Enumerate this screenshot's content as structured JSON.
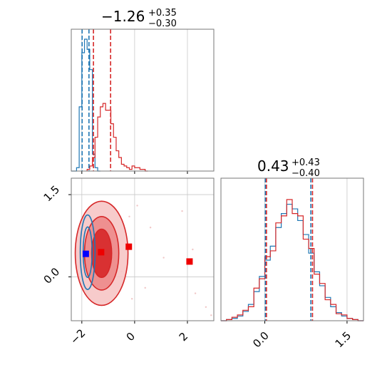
{
  "chart_data": [
    {
      "type": "histogram",
      "panel": "top-left",
      "title": {
        "value": "−1.26",
        "plus": "+0.35",
        "minus": "−0.30"
      },
      "xlim": [
        -2.4,
        3.0
      ],
      "grid": true,
      "series": [
        {
          "color": "#1f77b4",
          "bin_edges": [
            -2.4,
            -2.3,
            -2.2,
            -2.1,
            -2.0,
            -1.9,
            -1.8,
            -1.7,
            -1.6,
            -1.5,
            -1.4,
            -1.3
          ],
          "counts": [
            0,
            0,
            2,
            38,
            70,
            78,
            72,
            60,
            10,
            2,
            0
          ]
        },
        {
          "color": "#d62728",
          "bin_edges": [
            -1.8,
            -1.7,
            -1.6,
            -1.5,
            -1.4,
            -1.3,
            -1.2,
            -1.1,
            -1.0,
            -0.9,
            -0.8,
            -0.7,
            -0.6,
            -0.5,
            -0.4,
            -0.3,
            -0.2,
            -0.1,
            0.0,
            0.1,
            0.2,
            0.3,
            0.4,
            0.5
          ],
          "counts": [
            1,
            3,
            8,
            20,
            32,
            38,
            40,
            36,
            36,
            28,
            20,
            12,
            8,
            4,
            3,
            2,
            1,
            3,
            2,
            2,
            1,
            1,
            0
          ]
        }
      ],
      "quantile_lines": [
        {
          "x": -1.99,
          "color": "#1f77b4"
        },
        {
          "x": -1.73,
          "color": "#1f77b4"
        },
        {
          "x": -1.56,
          "color": "#d62728"
        },
        {
          "x": -0.91,
          "color": "#d62728"
        }
      ],
      "xticks": [
        -2,
        0,
        2
      ]
    },
    {
      "type": "histogram",
      "panel": "bottom-right",
      "title": {
        "value": "0.43",
        "plus": "+0.43",
        "minus": "−0.40"
      },
      "xlim": [
        -0.8,
        1.8
      ],
      "grid": true,
      "xticks": [
        {
          "value": 0.0,
          "label": "0.0"
        },
        {
          "value": 1.5,
          "label": "1.5"
        }
      ],
      "series": [
        {
          "color": "#1f77b4",
          "bin_edges": [
            -0.8,
            -0.7,
            -0.6,
            -0.5,
            -0.4,
            -0.3,
            -0.2,
            -0.1,
            0.0,
            0.1,
            0.2,
            0.3,
            0.4,
            0.5,
            0.6,
            0.7,
            0.8,
            0.9,
            1.0,
            1.1,
            1.2,
            1.3,
            1.4,
            1.5,
            1.6,
            1.7,
            1.8
          ],
          "counts": [
            0,
            1,
            2,
            4,
            8,
            14,
            25,
            38,
            52,
            64,
            80,
            92,
            100,
            96,
            86,
            74,
            58,
            42,
            30,
            20,
            12,
            7,
            4,
            2,
            1,
            0
          ]
        },
        {
          "color": "#d62728",
          "bin_edges": [
            -0.8,
            -0.7,
            -0.6,
            -0.5,
            -0.4,
            -0.3,
            -0.2,
            -0.1,
            0.0,
            0.1,
            0.2,
            0.3,
            0.4,
            0.5,
            0.6,
            0.7,
            0.8,
            0.9,
            1.0,
            1.1,
            1.2,
            1.3,
            1.4,
            1.5,
            1.6,
            1.7,
            1.8
          ],
          "counts": [
            0,
            1,
            3,
            5,
            9,
            12,
            28,
            36,
            55,
            60,
            84,
            90,
            104,
            92,
            90,
            70,
            62,
            40,
            32,
            18,
            14,
            6,
            5,
            2,
            1,
            0
          ]
        }
      ],
      "quantile_lines": [
        {
          "x": 0.01,
          "color": "#1f77b4"
        },
        {
          "x": 0.03,
          "color": "#d62728"
        },
        {
          "x": 0.84,
          "color": "#1f77b4"
        },
        {
          "x": 0.87,
          "color": "#d62728"
        }
      ]
    },
    {
      "type": "contour",
      "panel": "bottom-left",
      "xlim": [
        -2.4,
        3.0
      ],
      "ylim": [
        -0.8,
        1.8
      ],
      "grid": true,
      "xticks": [
        -2,
        0,
        2
      ],
      "yticks": [
        {
          "value": 0.0,
          "label": "0.0"
        },
        {
          "value": 1.5,
          "label": "1.5"
        }
      ],
      "contours": [
        {
          "color": "#d62728",
          "cx": -1.25,
          "cy": 0.43,
          "levels": [
            {
              "rx": 1.0,
              "ry": 0.95,
              "fill": "#f6c5c5"
            },
            {
              "rx": 0.65,
              "ry": 0.67,
              "fill": "#ec8a8a"
            },
            {
              "rx": 0.38,
              "ry": 0.44,
              "fill": "#d62728"
            }
          ]
        },
        {
          "color": "#1f77b4",
          "cx": -1.78,
          "cy": 0.45,
          "levels": [
            {
              "rx": 0.28,
              "ry": 0.68
            },
            {
              "rx": 0.17,
              "ry": 0.46
            }
          ]
        }
      ],
      "markers": [
        {
          "x": -1.85,
          "y": 0.42,
          "color": "#0000ff"
        },
        {
          "x": -1.27,
          "y": 0.45,
          "color": "#ee0000"
        },
        {
          "x": -0.22,
          "y": 0.55,
          "color": "#ee0000"
        },
        {
          "x": 2.08,
          "y": 0.28,
          "color": "#ee0000"
        }
      ],
      "scatter": [
        {
          "x": -0.2,
          "y": 1.1
        },
        {
          "x": 0.6,
          "y": 0.9
        },
        {
          "x": 1.8,
          "y": 1.2
        },
        {
          "x": 2.3,
          "y": -0.3
        },
        {
          "x": 2.7,
          "y": -0.55
        },
        {
          "x": 2.9,
          "y": -0.7
        },
        {
          "x": 0.4,
          "y": -0.2
        },
        {
          "x": -0.5,
          "y": 0.1
        },
        {
          "x": 1.1,
          "y": 0.35
        },
        {
          "x": 2.2,
          "y": 0.5
        },
        {
          "x": 0.1,
          "y": 1.3
        },
        {
          "x": -0.1,
          "y": -0.4
        }
      ]
    }
  ]
}
